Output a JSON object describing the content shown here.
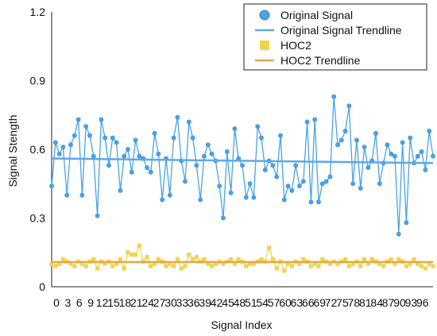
{
  "chart_data": {
    "type": "line",
    "title": "",
    "xlabel": "Signal Index",
    "ylabel": "Signal Stength",
    "xlim": [
      0,
      100
    ],
    "ylim": [
      0,
      1.2
    ],
    "yticks": [
      "0",
      "0.3",
      "0.6",
      "0.9",
      "1.2"
    ],
    "xticks": [
      "0",
      "3",
      "6",
      "9",
      "12",
      "15",
      "18",
      "21",
      "24",
      "27",
      "30",
      "33",
      "36",
      "39",
      "42",
      "45",
      "48",
      "51",
      "54",
      "57",
      "60",
      "63",
      "66",
      "69",
      "72",
      "75",
      "78",
      "81",
      "84",
      "87",
      "90",
      "93",
      "96"
    ],
    "grid": false,
    "legend_position": "top-right",
    "series": [
      {
        "name": "Original Signal",
        "kind": "line-marker",
        "color": "#4aa3e8",
        "marker": "circle",
        "values": [
          0.44,
          0.63,
          0.58,
          0.61,
          0.4,
          0.62,
          0.66,
          0.73,
          0.4,
          0.7,
          0.66,
          0.57,
          0.31,
          0.73,
          0.65,
          0.53,
          0.65,
          0.63,
          0.42,
          0.57,
          0.6,
          0.5,
          0.64,
          0.57,
          0.56,
          0.52,
          0.5,
          0.67,
          0.58,
          0.38,
          0.56,
          0.4,
          0.65,
          0.74,
          0.55,
          0.46,
          0.72,
          0.65,
          0.53,
          0.38,
          0.57,
          0.62,
          0.58,
          0.55,
          0.44,
          0.3,
          0.59,
          0.41,
          0.69,
          0.56,
          0.53,
          0.39,
          0.45,
          0.39,
          0.7,
          0.65,
          0.51,
          0.55,
          0.53,
          0.48,
          0.66,
          0.38,
          0.44,
          0.42,
          0.53,
          0.44,
          0.46,
          0.72,
          0.37,
          0.73,
          0.37,
          0.45,
          0.46,
          0.48,
          0.83,
          0.62,
          0.64,
          0.68,
          0.79,
          0.45,
          0.64,
          0.43,
          0.61,
          0.52,
          0.55,
          0.67,
          0.45,
          0.54,
          0.62,
          0.58,
          0.57,
          0.23,
          0.63,
          0.28,
          0.65,
          0.54,
          0.57,
          0.59,
          0.51,
          0.68,
          0.57
        ]
      },
      {
        "name": "Original Signal Trendline",
        "kind": "trendline",
        "color": "#5aaae6",
        "start": 0.56,
        "end": 0.54
      },
      {
        "name": "HOC2",
        "kind": "line-marker",
        "color": "#f2d44a",
        "marker": "square",
        "values": [
          0.1,
          0.09,
          0.1,
          0.12,
          0.11,
          0.1,
          0.09,
          0.11,
          0.1,
          0.09,
          0.11,
          0.12,
          0.08,
          0.11,
          0.1,
          0.11,
          0.09,
          0.1,
          0.12,
          0.08,
          0.15,
          0.14,
          0.14,
          0.18,
          0.11,
          0.13,
          0.09,
          0.1,
          0.12,
          0.11,
          0.09,
          0.1,
          0.09,
          0.12,
          0.08,
          0.09,
          0.14,
          0.12,
          0.13,
          0.11,
          0.12,
          0.1,
          0.09,
          0.1,
          0.11,
          0.1,
          0.11,
          0.12,
          0.1,
          0.12,
          0.11,
          0.09,
          0.1,
          0.1,
          0.11,
          0.12,
          0.11,
          0.17,
          0.12,
          0.08,
          0.11,
          0.07,
          0.1,
          0.09,
          0.11,
          0.1,
          0.12,
          0.11,
          0.09,
          0.1,
          0.09,
          0.12,
          0.11,
          0.1,
          0.11,
          0.1,
          0.11,
          0.12,
          0.09,
          0.1,
          0.11,
          0.09,
          0.12,
          0.1,
          0.12,
          0.11,
          0.1,
          0.09,
          0.11,
          0.12,
          0.1,
          0.12,
          0.11,
          0.09,
          0.1,
          0.12,
          0.1,
          0.09,
          0.08,
          0.1,
          0.09
        ]
      },
      {
        "name": "HOC2 Trendline",
        "kind": "trendline",
        "color": "#e3a84a",
        "start": 0.108,
        "end": 0.108
      }
    ]
  }
}
